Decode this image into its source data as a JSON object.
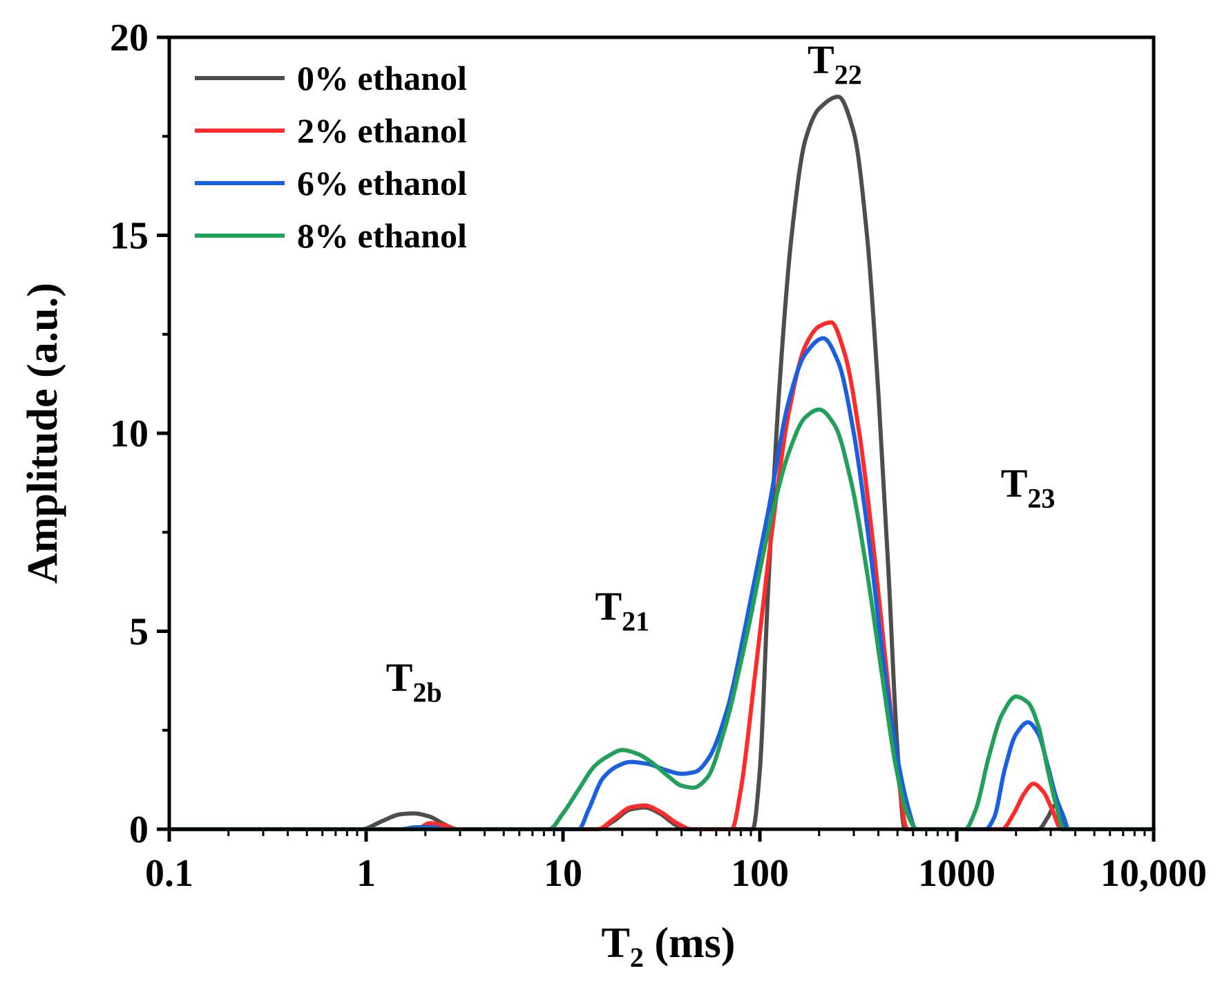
{
  "chart_data": {
    "type": "line",
    "title": "",
    "xlabel": "T",
    "xlabel_sub": "2",
    "xlabel_suffix": " (ms)",
    "ylabel": "Amplitude (a.u.)",
    "xscale": "log",
    "xlim": [
      0.1,
      10000
    ],
    "ylim": [
      0,
      20
    ],
    "xticks": [
      0.1,
      1,
      10,
      100,
      1000,
      10000
    ],
    "xtick_labels": [
      "0.1",
      "1",
      "10",
      "100",
      "1000",
      "10,000"
    ],
    "yticks": [
      0,
      5,
      10,
      15,
      20
    ],
    "ytick_labels": [
      "0",
      "5",
      "10",
      "15",
      "20"
    ],
    "grid": false,
    "legend_position": "top-left",
    "series": [
      {
        "name": "0% ethanol",
        "color": "#4d4d4d",
        "points": [
          [
            0.1,
            0
          ],
          [
            0.95,
            0
          ],
          [
            1.2,
            0.2
          ],
          [
            1.5,
            0.38
          ],
          [
            1.75,
            0.4
          ],
          [
            2.1,
            0.32
          ],
          [
            2.5,
            0.12
          ],
          [
            2.9,
            0
          ],
          [
            15,
            0
          ],
          [
            18,
            0.2
          ],
          [
            22,
            0.5
          ],
          [
            26,
            0.55
          ],
          [
            31,
            0.4
          ],
          [
            37,
            0.12
          ],
          [
            42,
            0
          ],
          [
            92,
            0
          ],
          [
            100,
            1.5
          ],
          [
            110,
            6.0
          ],
          [
            125,
            11.0
          ],
          [
            145,
            15.0
          ],
          [
            170,
            17.4
          ],
          [
            200,
            18.2
          ],
          [
            250,
            18.5
          ],
          [
            300,
            17.6
          ],
          [
            350,
            15.0
          ],
          [
            400,
            11.0
          ],
          [
            450,
            6.5
          ],
          [
            500,
            2.0
          ],
          [
            545,
            0
          ],
          [
            2600,
            0
          ],
          [
            2900,
            0.3
          ],
          [
            3150,
            0.6
          ],
          [
            3400,
            0.3
          ],
          [
            3700,
            0
          ],
          [
            10000,
            0
          ]
        ]
      },
      {
        "name": "2% ethanol",
        "color": "#ff2a2a",
        "points": [
          [
            0.1,
            0
          ],
          [
            1.8,
            0
          ],
          [
            2.1,
            0.15
          ],
          [
            2.5,
            0.1
          ],
          [
            2.9,
            0
          ],
          [
            15,
            0
          ],
          [
            18,
            0.25
          ],
          [
            22,
            0.55
          ],
          [
            26,
            0.6
          ],
          [
            31,
            0.45
          ],
          [
            38,
            0.15
          ],
          [
            45,
            0
          ],
          [
            72,
            0
          ],
          [
            80,
            1.0
          ],
          [
            95,
            4.0
          ],
          [
            115,
            7.5
          ],
          [
            140,
            10.5
          ],
          [
            170,
            12.2
          ],
          [
            200,
            12.7
          ],
          [
            230,
            12.8
          ],
          [
            270,
            12.0
          ],
          [
            320,
            10.0
          ],
          [
            380,
            7.0
          ],
          [
            440,
            4.0
          ],
          [
            500,
            1.5
          ],
          [
            560,
            0
          ],
          [
            1700,
            0
          ],
          [
            1950,
            0.4
          ],
          [
            2200,
            0.9
          ],
          [
            2450,
            1.15
          ],
          [
            2750,
            0.95
          ],
          [
            3050,
            0.5
          ],
          [
            3400,
            0
          ],
          [
            10000,
            0
          ]
        ]
      },
      {
        "name": "6% ethanol",
        "color": "#1a5fe0",
        "points": [
          [
            0.1,
            0
          ],
          [
            1.5,
            0
          ],
          [
            1.8,
            0.05
          ],
          [
            2.2,
            0.05
          ],
          [
            2.5,
            0
          ],
          [
            12,
            0
          ],
          [
            13.5,
            0.5
          ],
          [
            16,
            1.3
          ],
          [
            19,
            1.6
          ],
          [
            22,
            1.7
          ],
          [
            27,
            1.65
          ],
          [
            33,
            1.5
          ],
          [
            40,
            1.4
          ],
          [
            47,
            1.45
          ],
          [
            55,
            1.8
          ],
          [
            68,
            3.0
          ],
          [
            85,
            5.2
          ],
          [
            110,
            8.0
          ],
          [
            140,
            10.8
          ],
          [
            170,
            12.0
          ],
          [
            210,
            12.4
          ],
          [
            250,
            11.8
          ],
          [
            300,
            10.0
          ],
          [
            360,
            7.2
          ],
          [
            430,
            4.0
          ],
          [
            500,
            1.8
          ],
          [
            570,
            0.5
          ],
          [
            620,
            0
          ],
          [
            1400,
            0
          ],
          [
            1550,
            0.3
          ],
          [
            1750,
            1.5
          ],
          [
            2000,
            2.4
          ],
          [
            2300,
            2.7
          ],
          [
            2600,
            2.4
          ],
          [
            2900,
            1.6
          ],
          [
            3200,
            0.8
          ],
          [
            3500,
            0.3
          ],
          [
            3700,
            0
          ],
          [
            10000,
            0
          ]
        ]
      },
      {
        "name": "8% ethanol",
        "color": "#22a05a",
        "points": [
          [
            0.1,
            0
          ],
          [
            8.5,
            0
          ],
          [
            10,
            0.4
          ],
          [
            12,
            1.0
          ],
          [
            14.5,
            1.6
          ],
          [
            17,
            1.85
          ],
          [
            20,
            2.0
          ],
          [
            24,
            1.9
          ],
          [
            28,
            1.7
          ],
          [
            34,
            1.35
          ],
          [
            40,
            1.1
          ],
          [
            46,
            1.05
          ],
          [
            54,
            1.3
          ],
          [
            66,
            2.5
          ],
          [
            85,
            4.8
          ],
          [
            110,
            7.5
          ],
          [
            140,
            9.5
          ],
          [
            170,
            10.4
          ],
          [
            200,
            10.6
          ],
          [
            240,
            10.2
          ],
          [
            290,
            8.8
          ],
          [
            350,
            6.5
          ],
          [
            420,
            3.8
          ],
          [
            490,
            1.6
          ],
          [
            560,
            0.4
          ],
          [
            630,
            0
          ],
          [
            1100,
            0
          ],
          [
            1250,
            0.5
          ],
          [
            1450,
            1.8
          ],
          [
            1700,
            2.9
          ],
          [
            2000,
            3.35
          ],
          [
            2300,
            3.2
          ],
          [
            2600,
            2.6
          ],
          [
            2900,
            1.5
          ],
          [
            3200,
            0.6
          ],
          [
            3500,
            0
          ],
          [
            10000,
            0
          ]
        ]
      }
    ],
    "annotations": [
      {
        "text": "T",
        "sub": "2b",
        "x": 1.75,
        "y": 3.5
      },
      {
        "text": "T",
        "sub": "21",
        "x": 20,
        "y": 5.3
      },
      {
        "text": "T",
        "sub": "22",
        "x": 240,
        "y": 19.1
      },
      {
        "text": "T",
        "sub": "23",
        "x": 2300,
        "y": 8.4
      }
    ]
  }
}
